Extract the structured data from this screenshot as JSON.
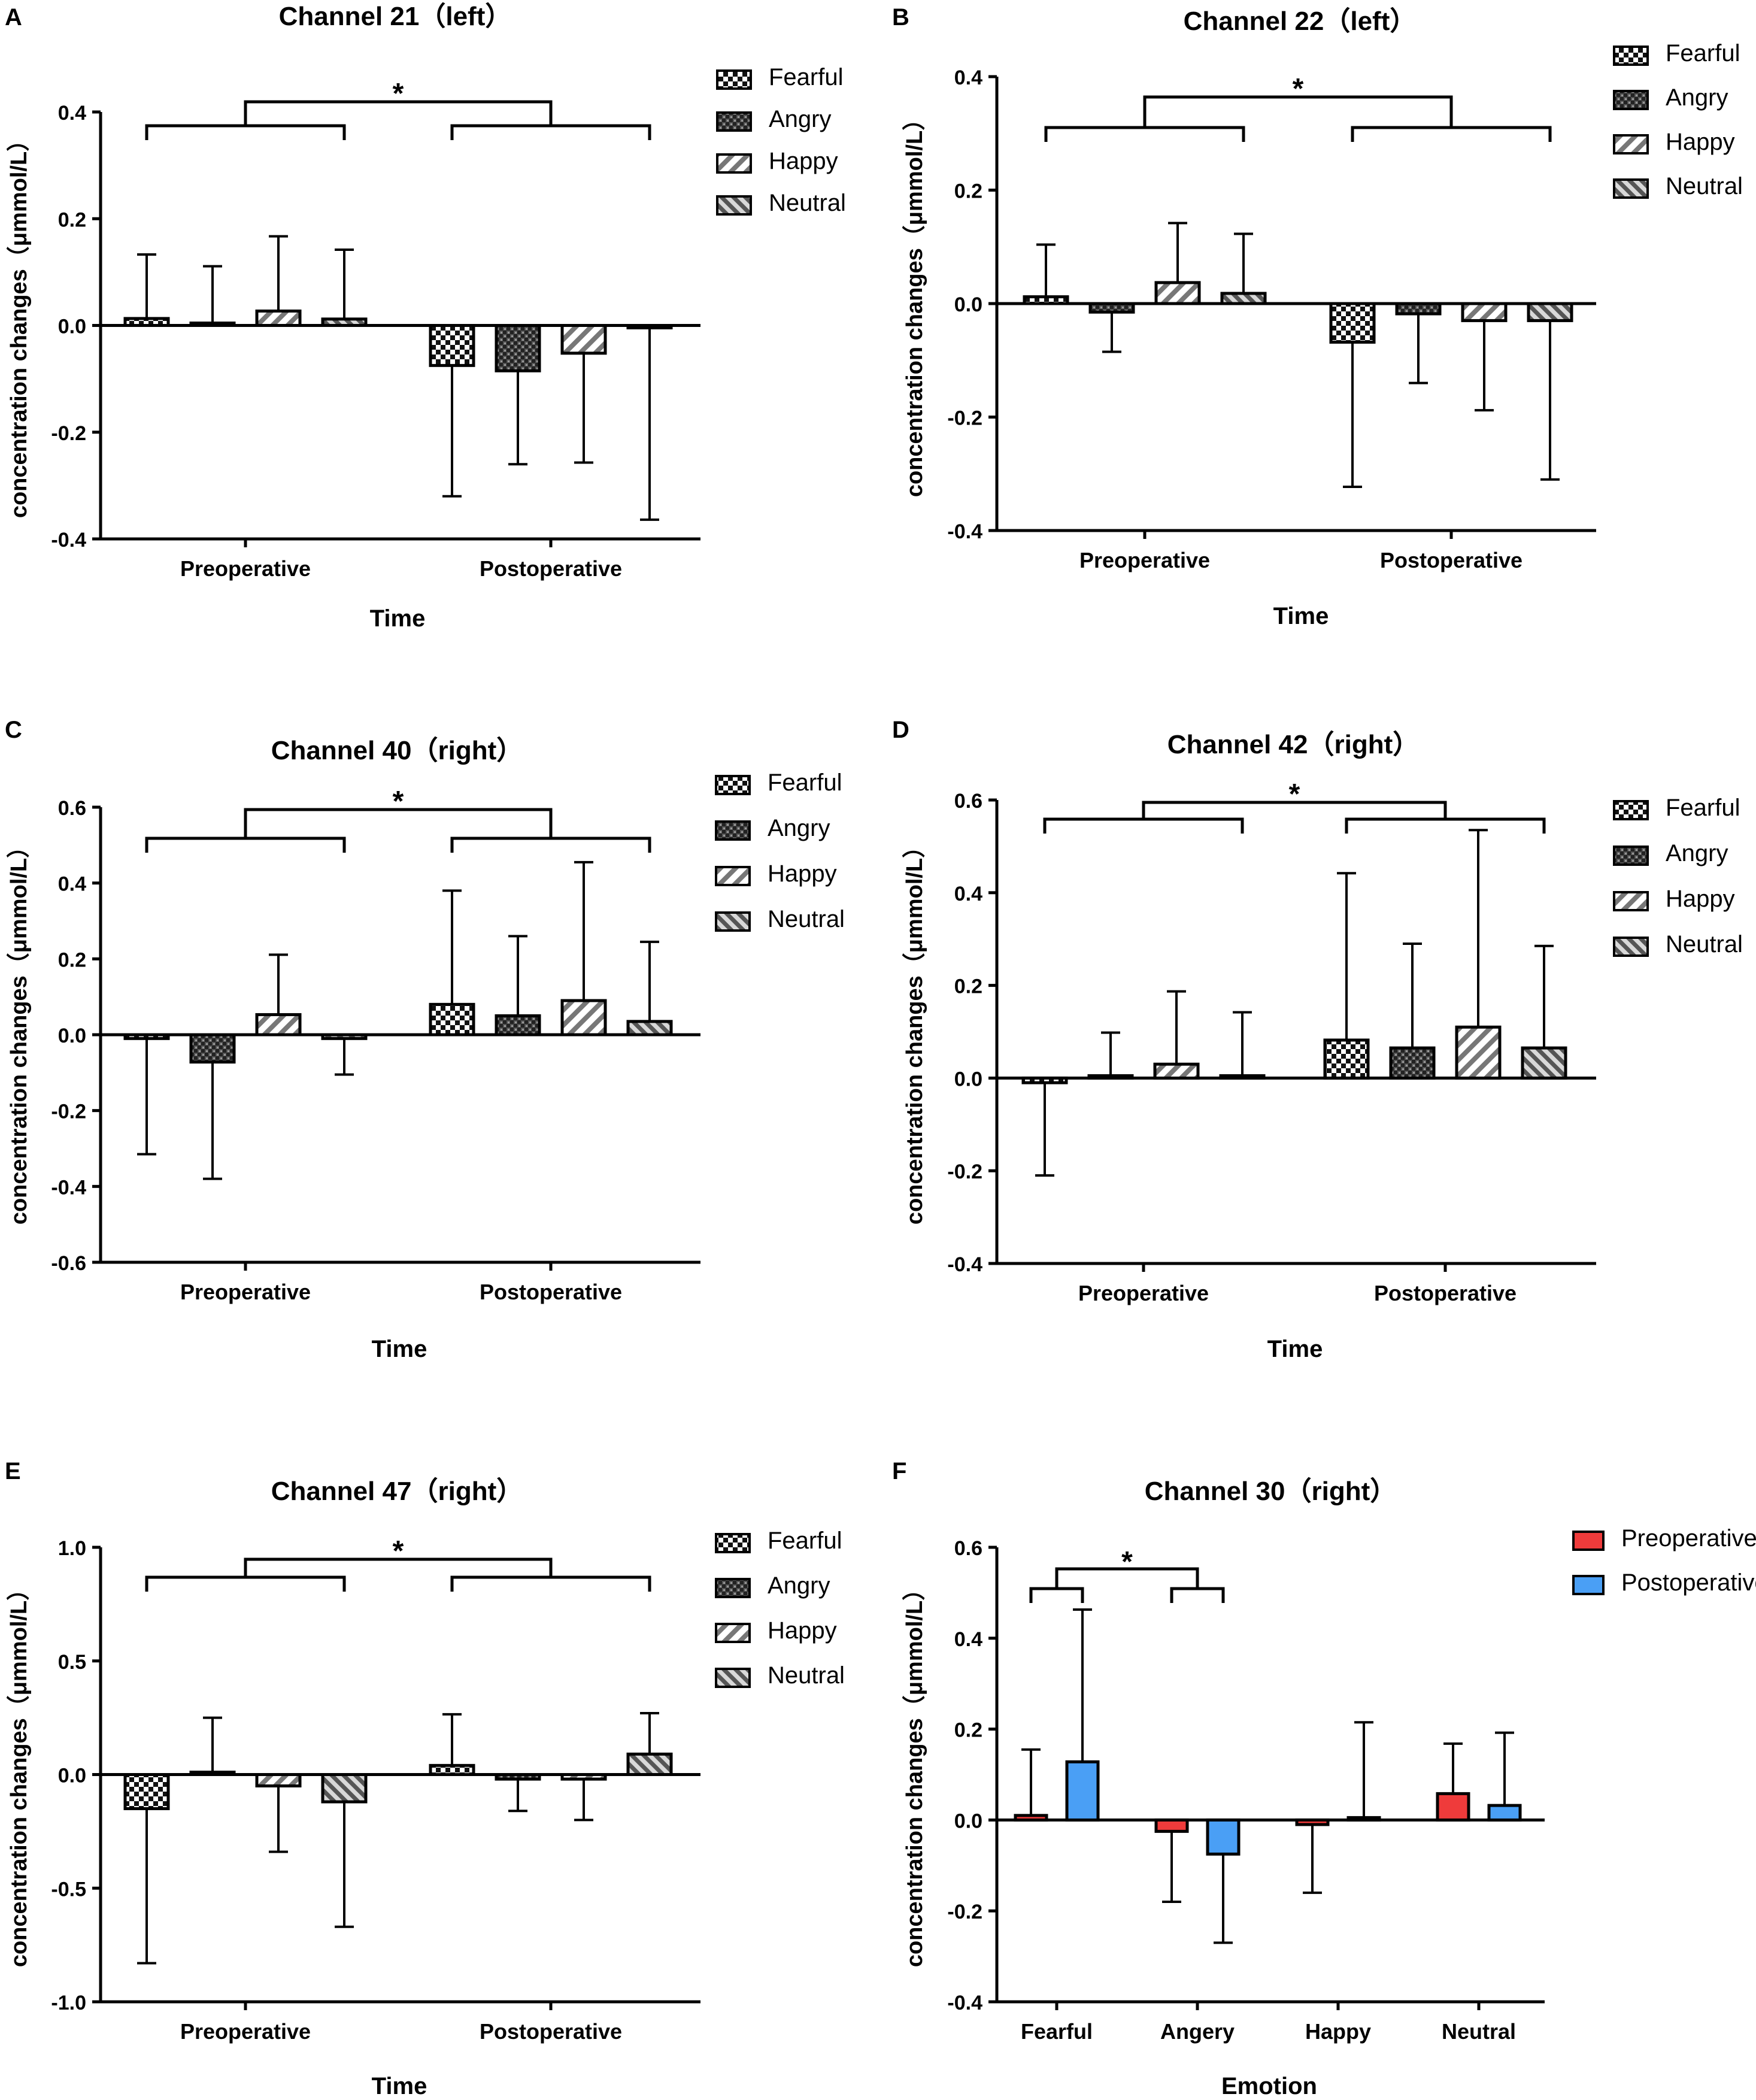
{
  "figure_title": "fNIRS concentration changes by channel",
  "chart_data": [
    {
      "panel": "A",
      "type": "bar",
      "title": "Channel 21（left）",
      "xlabel": "Time",
      "ylabel": "concentration changes（μmmol/L）",
      "categories": [
        "Preoperative",
        "Postoperative"
      ],
      "ylim": [
        -0.4,
        0.4
      ],
      "yticks": [
        0.4,
        0.2,
        0.0,
        -0.2,
        -0.4
      ],
      "ytick_labels": [
        "0.4",
        "0.2",
        "0.0",
        "-0.2",
        "-0.4"
      ],
      "legend_position": "right",
      "series": [
        {
          "name": "Fearful",
          "values": [
            0.013,
            -0.075
          ],
          "errors": [
            0.12,
            0.245
          ]
        },
        {
          "name": "Angry",
          "values": [
            0.003,
            -0.085
          ],
          "errors": [
            0.108,
            0.175
          ]
        },
        {
          "name": "Happy",
          "values": [
            0.027,
            -0.052
          ],
          "errors": [
            0.14,
            0.205
          ]
        },
        {
          "name": "Neutral",
          "values": [
            0.012,
            -0.004
          ],
          "errors": [
            0.13,
            0.36
          ]
        }
      ],
      "significance": {
        "label": "*",
        "between": [
          "Preoperative",
          "Postoperative"
        ]
      }
    },
    {
      "panel": "B",
      "type": "bar",
      "title": "Channel 22（left）",
      "xlabel": "Time",
      "ylabel": "concentration changes（μmmol/L）",
      "categories": [
        "Preoperative",
        "Postoperative"
      ],
      "ylim": [
        -0.4,
        0.4
      ],
      "yticks": [
        0.4,
        0.2,
        0.0,
        -0.2,
        -0.4
      ],
      "ytick_labels": [
        "0.4",
        "0.2",
        "0.0",
        "-0.2",
        "-0.4"
      ],
      "legend_position": "right",
      "series": [
        {
          "name": "Fearful",
          "values": [
            0.012,
            -0.068
          ],
          "errors": [
            0.092,
            0.255
          ]
        },
        {
          "name": "Angry",
          "values": [
            -0.015,
            -0.018
          ],
          "errors": [
            0.07,
            0.122
          ]
        },
        {
          "name": "Happy",
          "values": [
            0.037,
            -0.03
          ],
          "errors": [
            0.105,
            0.158
          ]
        },
        {
          "name": "Neutral",
          "values": [
            0.018,
            -0.03
          ],
          "errors": [
            0.105,
            0.28
          ]
        }
      ],
      "significance": {
        "label": "*",
        "between": [
          "Preoperative",
          "Postoperative"
        ]
      }
    },
    {
      "panel": "C",
      "type": "bar",
      "title": "Channel 40（right）",
      "xlabel": "Time",
      "ylabel": "concentration changes（μmmol/L）",
      "categories": [
        "Preoperative",
        "Postoperative"
      ],
      "ylim": [
        -0.6,
        0.6
      ],
      "yticks": [
        0.6,
        0.4,
        0.2,
        0.0,
        -0.2,
        -0.4,
        -0.6
      ],
      "ytick_labels": [
        "0.6",
        "0.4",
        "0.2",
        "0.0",
        "-0.2",
        "-0.4",
        "-0.6"
      ],
      "legend_position": "right",
      "series": [
        {
          "name": "Fearful",
          "values": [
            -0.01,
            0.08
          ],
          "errors": [
            0.305,
            0.3
          ]
        },
        {
          "name": "Angry",
          "values": [
            -0.072,
            0.05
          ],
          "errors": [
            0.308,
            0.21
          ]
        },
        {
          "name": "Happy",
          "values": [
            0.053,
            0.09
          ],
          "errors": [
            0.158,
            0.365
          ]
        },
        {
          "name": "Neutral",
          "values": [
            -0.01,
            0.035
          ],
          "errors": [
            0.095,
            0.21
          ]
        }
      ],
      "significance": {
        "label": "*",
        "between": [
          "Preoperative",
          "Postoperative"
        ]
      }
    },
    {
      "panel": "D",
      "type": "bar",
      "title": "Channel 42（right）",
      "xlabel": "Time",
      "ylabel": "concentration changes（μmmol/L）",
      "categories": [
        "Preoperative",
        "Postoperative"
      ],
      "ylim": [
        -0.4,
        0.6
      ],
      "yticks": [
        0.6,
        0.4,
        0.2,
        0.0,
        -0.2,
        -0.4
      ],
      "ytick_labels": [
        "0.6",
        "0.4",
        "0.2",
        "0.0",
        "-0.2",
        "-0.4"
      ],
      "legend_position": "right",
      "series": [
        {
          "name": "Fearful",
          "values": [
            -0.01,
            0.082
          ],
          "errors": [
            0.2,
            0.36
          ]
        },
        {
          "name": "Angry",
          "values": [
            0.003,
            0.065
          ],
          "errors": [
            0.095,
            0.225
          ]
        },
        {
          "name": "Happy",
          "values": [
            0.03,
            0.11
          ],
          "errors": [
            0.157,
            0.425
          ]
        },
        {
          "name": "Neutral",
          "values": [
            0.002,
            0.065
          ],
          "errors": [
            0.14,
            0.22
          ]
        }
      ],
      "significance": {
        "label": "*",
        "between": [
          "Preoperative",
          "Postoperative"
        ]
      }
    },
    {
      "panel": "E",
      "type": "bar",
      "title": "Channel 47（right）",
      "xlabel": "Time",
      "ylabel": "concentration changes（μmmol/L）",
      "categories": [
        "Preoperative",
        "Postoperative"
      ],
      "ylim": [
        -1.0,
        1.0
      ],
      "yticks": [
        1.0,
        0.5,
        0.0,
        -0.5,
        -1.0
      ],
      "ytick_labels": [
        "1.0",
        "0.5",
        "0.0",
        "-0.5",
        "-1.0"
      ],
      "legend_position": "right",
      "series": [
        {
          "name": "Fearful",
          "values": [
            -0.15,
            0.04
          ],
          "errors": [
            0.68,
            0.225
          ]
        },
        {
          "name": "Angry",
          "values": [
            0.0,
            -0.02
          ],
          "errors": [
            0.25,
            0.14
          ]
        },
        {
          "name": "Happy",
          "values": [
            -0.05,
            -0.02
          ],
          "errors": [
            0.29,
            0.18
          ]
        },
        {
          "name": "Neutral",
          "values": [
            -0.12,
            0.09
          ],
          "errors": [
            0.55,
            0.18
          ]
        }
      ],
      "significance": {
        "label": "*",
        "between": [
          "Preoperative",
          "Postoperative"
        ]
      }
    },
    {
      "panel": "F",
      "type": "bar",
      "title": "Channel 30（right）",
      "xlabel": "Emotion",
      "ylabel": "concentration changes（μmmol/L）",
      "categories": [
        "Fearful",
        "Angery",
        "Happy",
        "Neutral"
      ],
      "ylim": [
        -0.4,
        0.6
      ],
      "yticks": [
        0.6,
        0.4,
        0.2,
        0.0,
        -0.2,
        -0.4
      ],
      "ytick_labels": [
        "0.6",
        "0.4",
        "0.2",
        "0.0",
        "-0.2",
        "-0.4"
      ],
      "legend_position": "right",
      "series": [
        {
          "name": "Preoperative",
          "color": "#ef3b3b",
          "values": [
            0.01,
            -0.025,
            -0.01,
            0.058
          ],
          "errors": [
            0.145,
            0.155,
            0.15,
            0.11
          ]
        },
        {
          "name": "Postoperative",
          "color": "#4a9ff5",
          "values": [
            0.128,
            -0.075,
            0.0,
            0.032
          ],
          "errors": [
            0.335,
            0.195,
            0.215,
            0.16
          ]
        }
      ],
      "significance": {
        "label": "*",
        "between": [
          "Fearful",
          "Angery"
        ]
      }
    }
  ]
}
